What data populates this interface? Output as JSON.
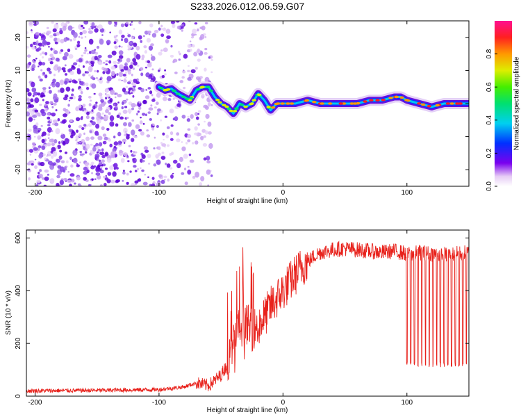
{
  "title": "S233.2026.012.06.59.G07",
  "colors": {
    "snr_line": "#e8221c",
    "signal": "#5b00d6",
    "background": "#ffffff"
  },
  "chart_data": [
    {
      "type": "heatmap",
      "title": "S233.2026.012.06.59.G07",
      "xlabel": "Height of straight line (km)",
      "ylabel": "Frequency (Hz)",
      "xlim": [
        -207,
        150
      ],
      "ylim": [
        -25,
        25
      ],
      "xticks": [
        -200,
        -100,
        0,
        100
      ],
      "yticks": [
        -20,
        -10,
        0,
        10,
        20
      ],
      "colorbar": {
        "label": "Normalized spectral amplitude",
        "range": [
          0.0,
          1.0
        ],
        "ticks": [
          0.0,
          0.2,
          0.4,
          0.6,
          0.8
        ],
        "tick_labels": [
          "0.0",
          "0.2",
          "0.4",
          "0.6",
          "0.8"
        ]
      },
      "signal_track": {
        "x": [
          -100,
          -95,
          -90,
          -85,
          -80,
          -75,
          -70,
          -65,
          -60,
          -55,
          -50,
          -45,
          -40,
          -35,
          -30,
          -25,
          -20,
          -15,
          -10,
          -5,
          0,
          10,
          20,
          30,
          40,
          50,
          60,
          70,
          80,
          90,
          95,
          100,
          110,
          120,
          130,
          140,
          150
        ],
        "frequency_hz": [
          5,
          4,
          4.5,
          3,
          2,
          1,
          4,
          5,
          5,
          2,
          0,
          -1,
          -3,
          0,
          -1,
          0,
          3,
          1,
          -2,
          0,
          0,
          0,
          1,
          0,
          0,
          0,
          0,
          1,
          1,
          2,
          2,
          1,
          0,
          -1,
          0,
          0,
          0
        ]
      }
    },
    {
      "type": "line",
      "xlabel": "Height of straight line (km)",
      "ylabel": "SNR (10 * v/v)",
      "xlim": [
        -207,
        150
      ],
      "ylim": [
        0,
        630
      ],
      "xticks": [
        -200,
        -100,
        0,
        100
      ],
      "yticks": [
        0,
        200,
        400,
        600
      ],
      "series": [
        {
          "name": "SNR",
          "x": [
            -207,
            -150,
            -100,
            -80,
            -70,
            -60,
            -50,
            -45,
            -40,
            -35,
            -30,
            -25,
            -20,
            -15,
            -10,
            -5,
            0,
            5,
            10,
            15,
            20,
            25,
            30,
            40,
            50,
            60,
            70,
            80,
            90,
            100,
            110,
            120,
            130,
            140,
            150
          ],
          "y": [
            20,
            22,
            25,
            35,
            50,
            40,
            80,
            120,
            200,
            260,
            280,
            250,
            270,
            300,
            340,
            370,
            400,
            430,
            460,
            490,
            510,
            530,
            545,
            555,
            560,
            555,
            550,
            545,
            550,
            540,
            545,
            540,
            535,
            540,
            545
          ]
        }
      ],
      "dropouts_x": [
        100,
        103,
        106,
        109,
        112,
        115,
        118,
        121,
        124,
        127,
        130,
        133,
        136,
        139,
        142,
        145,
        148
      ],
      "dropout_y": 110
    }
  ]
}
